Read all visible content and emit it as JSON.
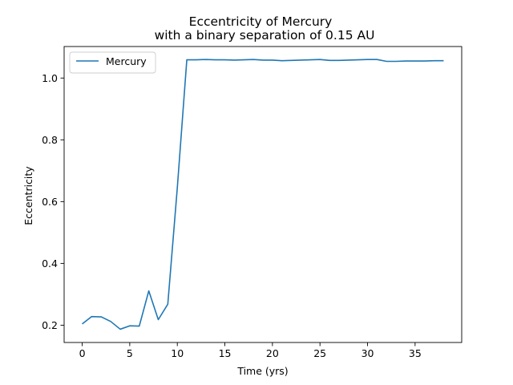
{
  "chart_data": {
    "type": "line",
    "title": "Eccentricity of Mercury",
    "subtitle": "with a binary separation of 0.15 AU",
    "xlabel": "Time (yrs)",
    "ylabel": "Eccentricity",
    "xlim": [
      -1.9,
      39.9
    ],
    "ylim": [
      0.144,
      1.102
    ],
    "xticks": [
      0,
      5,
      10,
      15,
      20,
      25,
      30,
      35
    ],
    "yticks": [
      0.2,
      0.4,
      0.6,
      0.8,
      1.0
    ],
    "ytick_labels": [
      "0.2",
      "0.4",
      "0.6",
      "0.8",
      "1.0"
    ],
    "grid": false,
    "legend": {
      "position": "top-left",
      "entries": [
        "Mercury"
      ]
    },
    "series": [
      {
        "name": "Mercury",
        "color": "#1f77b4",
        "x": [
          0,
          1,
          2,
          3,
          4,
          5,
          6,
          7,
          8,
          9,
          10,
          11,
          12,
          13,
          14,
          15,
          16,
          17,
          18,
          19,
          20,
          21,
          22,
          23,
          24,
          25,
          26,
          27,
          28,
          29,
          30,
          31,
          32,
          33,
          34,
          35,
          36,
          37,
          38
        ],
        "y": [
          0.204,
          0.228,
          0.227,
          0.212,
          0.187,
          0.198,
          0.197,
          0.311,
          0.218,
          0.268,
          0.645,
          1.059,
          1.059,
          1.06,
          1.059,
          1.059,
          1.058,
          1.059,
          1.06,
          1.058,
          1.058,
          1.056,
          1.057,
          1.058,
          1.059,
          1.06,
          1.057,
          1.057,
          1.058,
          1.059,
          1.06,
          1.06,
          1.054,
          1.054,
          1.055,
          1.055,
          1.055,
          1.056,
          1.056
        ]
      }
    ]
  }
}
